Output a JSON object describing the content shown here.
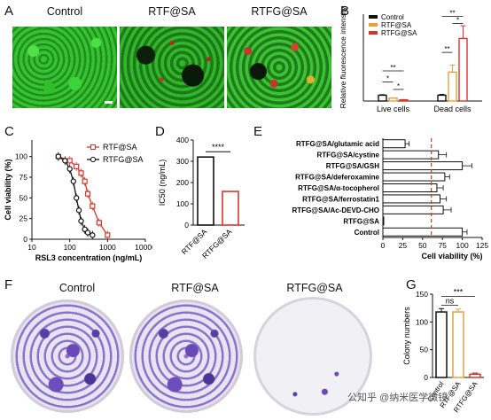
{
  "panels": {
    "A": {
      "letter": "A",
      "labels": [
        "Control",
        "RTF@SA",
        "RTFG@SA"
      ]
    },
    "B": {
      "letter": "B"
    },
    "C": {
      "letter": "C"
    },
    "D": {
      "letter": "D"
    },
    "E": {
      "letter": "E"
    },
    "F": {
      "letter": "F",
      "labels": [
        "Control",
        "RTF@SA",
        "RTFG@SA"
      ]
    },
    "G": {
      "letter": "G"
    }
  },
  "watermark": "公知乎 @纳米医学微镜",
  "chart_data": [
    {
      "id": "B",
      "type": "bar",
      "ylabel": "Relative fluorescence intensity",
      "categories": [
        "Live cells",
        "Dead cells"
      ],
      "series": [
        {
          "name": "Control",
          "values": [
            1.0,
            1.0
          ],
          "errors": [
            0.1,
            0.15
          ],
          "color": "#111111"
        },
        {
          "name": "RTF@SA",
          "values": [
            0.5,
            5.0
          ],
          "errors": [
            0.05,
            1.2
          ],
          "color": "#e6a23c"
        },
        {
          "name": "RTFG@SA",
          "values": [
            0.2,
            10.8
          ],
          "errors": [
            0.05,
            2.2
          ],
          "color": "#d9362b"
        }
      ],
      "ylim": [
        0,
        15
      ],
      "annotations": [
        "**",
        "*",
        "*",
        "**",
        "**",
        "*"
      ],
      "legend": "top-left"
    },
    {
      "id": "C",
      "type": "line",
      "xlabel": "RSL3 concentration (ng/mL)",
      "ylabel": "Cell viability (%)",
      "xscale": "log",
      "xlim": [
        10,
        10000
      ],
      "ylim": [
        0,
        120
      ],
      "xticks": [
        "10",
        "100",
        "1000",
        "10000"
      ],
      "yticks": [
        "0",
        "25",
        "50",
        "75",
        "100"
      ],
      "series": [
        {
          "name": "RTF@SA",
          "color": "#d9362b",
          "marker": "square",
          "x": [
            50,
            100,
            150,
            200,
            250,
            300,
            400,
            600,
            1000
          ],
          "y": [
            100,
            95,
            88,
            80,
            70,
            55,
            40,
            20,
            5
          ]
        },
        {
          "name": "RTFG@SA",
          "color": "#111111",
          "marker": "circle",
          "x": [
            50,
            75,
            100,
            125,
            150,
            175,
            200,
            250,
            300,
            400
          ],
          "y": [
            100,
            95,
            85,
            70,
            50,
            35,
            22,
            12,
            8,
            5
          ]
        }
      ],
      "legend": "top-right"
    },
    {
      "id": "D",
      "type": "bar",
      "ylabel": "IC50 (ng/mL)",
      "categories": [
        "RTF@SA",
        "RTFG@SA"
      ],
      "values": [
        320,
        158
      ],
      "colors": [
        "#111111",
        "#d9362b"
      ],
      "ylim": [
        0,
        400
      ],
      "yticks": [
        "0",
        "100",
        "200",
        "300",
        "400"
      ],
      "annotations": [
        "****"
      ]
    },
    {
      "id": "E",
      "type": "bar",
      "orientation": "horizontal",
      "xlabel": "Cell viability (%)",
      "categories": [
        "RTFG@SA/glutamic acid",
        "RTFG@SA/cystine",
        "RTFG@SA/GSH",
        "RTFG@SA/deferoxamine",
        "RTFG@SA/α-tocopherol",
        "RTFG@SA/ferrostatin1",
        "RTFG@SA/Ac-DEVD-CHO",
        "RTFG@SA",
        "Control"
      ],
      "values": [
        28,
        70,
        100,
        78,
        68,
        72,
        76,
        1,
        100
      ],
      "errors": [
        5,
        10,
        12,
        6,
        8,
        8,
        10,
        0,
        6
      ],
      "xlim": [
        0,
        125
      ],
      "xticks": [
        "0",
        "25",
        "50",
        "75",
        "100",
        "125"
      ],
      "reference_line": 61,
      "reference_color": "#d9362b"
    },
    {
      "id": "G",
      "type": "bar",
      "ylabel": "Colony numbers",
      "categories": [
        "Control",
        "RTF@SA",
        "RTFG@SA"
      ],
      "values": [
        118,
        118,
        6
      ],
      "errors": [
        6,
        5,
        2
      ],
      "colors": [
        "#111111",
        "#e6a23c",
        "#d9362b"
      ],
      "ylim": [
        0,
        150
      ],
      "yticks": [
        "0",
        "50",
        "100",
        "150"
      ],
      "annotations": [
        "ns",
        "***"
      ]
    }
  ]
}
